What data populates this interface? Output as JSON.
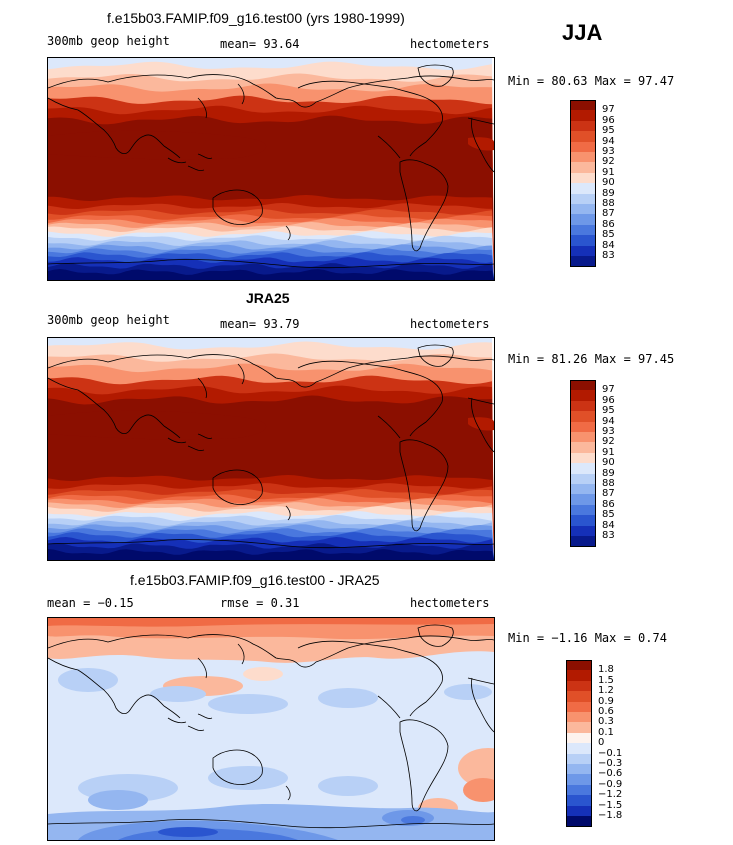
{
  "season": "JJA",
  "panels": [
    {
      "title": "f.e15b03.FAMIP.f09_g16.test00 (yrs 1980-1999)",
      "left_label": "300mb geop height",
      "stat": "mean=  93.64",
      "units": "hectometers",
      "minmax": "Min =  80.63 Max =  97.47",
      "kind": "abs",
      "legend_labels": [
        "97",
        "96",
        "95",
        "94",
        "93",
        "92",
        "91",
        "90",
        "89",
        "88",
        "87",
        "86",
        "85",
        "84",
        "83"
      ]
    },
    {
      "title": "JRA25",
      "left_label": "300mb geop height",
      "stat": "mean=  93.79",
      "units": "hectometers",
      "minmax": "Min =  81.26 Max =  97.45",
      "kind": "abs",
      "legend_labels": [
        "97",
        "96",
        "95",
        "94",
        "93",
        "92",
        "91",
        "90",
        "89",
        "88",
        "87",
        "86",
        "85",
        "84",
        "83"
      ]
    },
    {
      "title": "f.e15b03.FAMIP.f09_g16.test00 - JRA25",
      "left_label": "mean =  −0.15",
      "stat": "rmse =   0.31",
      "units": "hectometers",
      "minmax": "Min =  −1.16 Max =   0.74",
      "kind": "diff",
      "legend_labels": [
        "1.8",
        "1.5",
        "1.2",
        "0.9",
        "0.6",
        "0.3",
        "0.1",
        "0",
        "−0.1",
        "−0.3",
        "−0.6",
        "−0.9",
        "−1.2",
        "−1.5",
        "−1.8"
      ]
    }
  ],
  "colors": {
    "scale": [
      "#8b0f00",
      "#b21a00",
      "#cc3314",
      "#e05028",
      "#f06b45",
      "#f8926e",
      "#fbb89c",
      "#fddccc",
      "#fdf3ee",
      "#dce8fb",
      "#b8d0f6",
      "#94b6f0",
      "#6e98e8",
      "#4a78de",
      "#2a55cf",
      "#1530b8",
      "#081a8c",
      "#000a6b"
    ]
  }
}
